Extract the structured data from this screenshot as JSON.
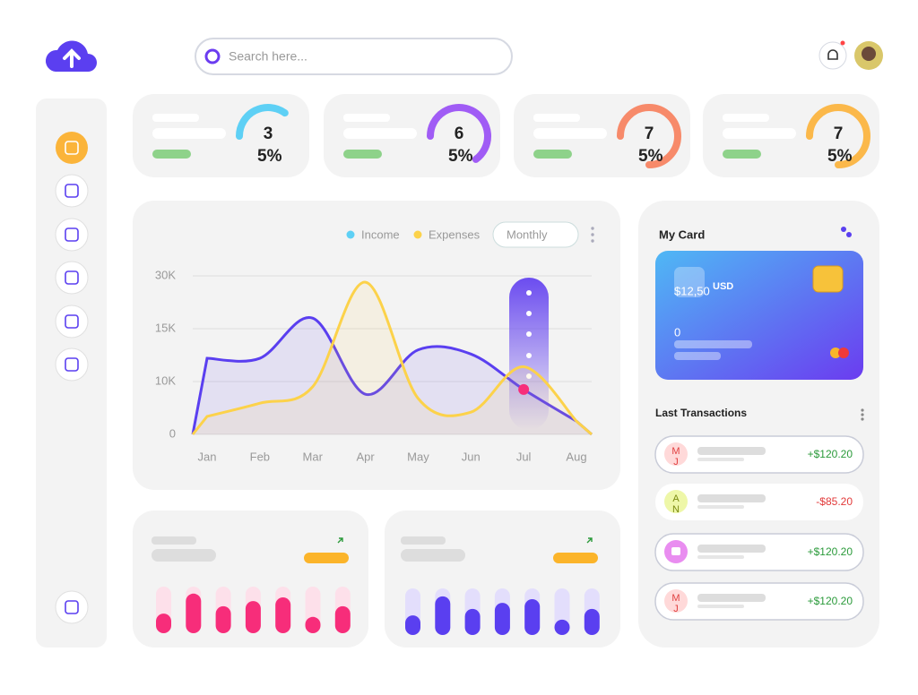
{
  "search": {
    "placeholder": "Search here..."
  },
  "kpis": [
    {
      "value": 35,
      "label": "35%",
      "color": "#5ed0f5"
    },
    {
      "value": 65,
      "label": "65%",
      "color": "#a05cf5"
    },
    {
      "value": 75,
      "label": "75%",
      "color": "#f78a6a"
    },
    {
      "value": 75,
      "label": "75%",
      "color": "#fbb84a"
    }
  ],
  "chart_data": {
    "type": "line",
    "categories": [
      "Jan",
      "Feb",
      "Mar",
      "Apr",
      "May",
      "Jun",
      "Jul",
      "Aug"
    ],
    "series": [
      {
        "name": "Income",
        "color": "#5a3ff0",
        "values": [
          12200,
          12200,
          18000,
          7600,
          13000,
          12600,
          8500,
          2500
        ]
      },
      {
        "name": "Expenses",
        "color": "#fcd24a",
        "values": [
          3400,
          5900,
          9000,
          28200,
          6800,
          4200,
          11400,
          2500
        ]
      }
    ],
    "ylim": [
      0,
      30000
    ],
    "yticks": [
      0,
      {
        "value": 10000,
        "label": "10K"
      },
      {
        "value": 15000,
        "label": "15K"
      },
      {
        "value": 30000,
        "label": "30K"
      }
    ],
    "grid": true,
    "period": "Monthly"
  },
  "mini_charts": [
    {
      "type": "bar",
      "color": "#f72d7a",
      "track": "#fde0ea",
      "ylim": [
        0,
        100
      ],
      "values": [
        42,
        85,
        58,
        69,
        77,
        35,
        58
      ]
    },
    {
      "type": "bar",
      "color": "#5a3ff0",
      "track": "#e3defc",
      "ylim": [
        0,
        100
      ],
      "values": [
        42,
        83,
        56,
        69,
        77,
        33,
        56
      ]
    }
  ],
  "card": {
    "title": "My Card",
    "balance": "$12,50",
    "currency": "USD",
    "number": "0"
  },
  "transactions": {
    "title": "Last Transactions",
    "items": [
      {
        "initials": "MJ",
        "amount": "+$120.20",
        "color": "#ffd9d9"
      },
      {
        "initials": "AN",
        "amount": "-$85.20",
        "color": "#eef7a8"
      },
      {
        "initials": null,
        "amount": "+$120.20",
        "color": "#e98df0"
      },
      {
        "initials": "MJ",
        "amount": "+$120.20",
        "color": "#ffd9d9"
      }
    ]
  }
}
